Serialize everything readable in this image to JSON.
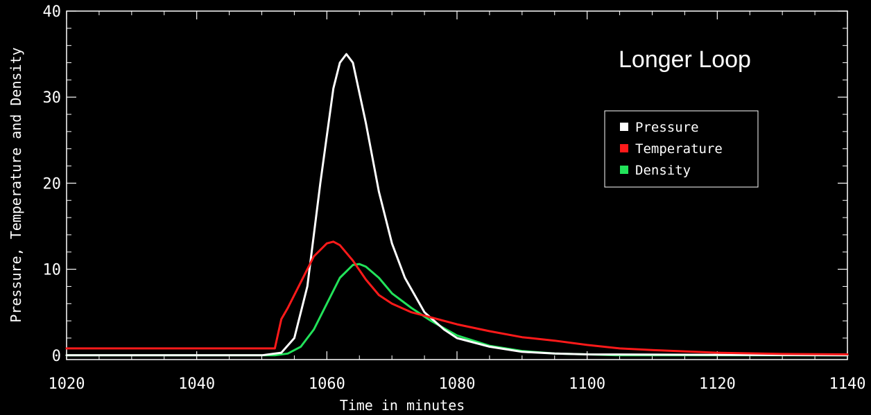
{
  "chart_data": {
    "type": "line",
    "xlabel": "Time in minutes",
    "ylabel": "Pressure, Temperature and Density",
    "xlim": [
      1020,
      1140
    ],
    "ylim": [
      -0.5,
      40
    ],
    "x_ticks": [
      "1020",
      "1040",
      "1060",
      "1080",
      "1100",
      "1120",
      "1140"
    ],
    "y_ticks": [
      "0",
      "10",
      "20",
      "30",
      "40"
    ],
    "annotation": "Longer Loop",
    "legend_position": "top-right",
    "grid": false,
    "background": "#000000",
    "series": [
      {
        "name": "Pressure",
        "color": "#ffffff",
        "x": [
          1020,
          1050,
          1053,
          1055,
          1057,
          1059,
          1061,
          1062,
          1063,
          1064,
          1066,
          1068,
          1070,
          1072,
          1075,
          1078,
          1080,
          1085,
          1090,
          1095,
          1100,
          1140
        ],
        "y": [
          0.0,
          0.0,
          0.3,
          2.0,
          8.0,
          20.0,
          31.0,
          34.0,
          35.0,
          34.0,
          27.0,
          19.0,
          13.0,
          9.0,
          5.0,
          3.0,
          2.0,
          1.0,
          0.4,
          0.2,
          0.1,
          0.0
        ]
      },
      {
        "name": "Temperature",
        "color": "#ff1a1a",
        "x": [
          1020,
          1052,
          1052.5,
          1053,
          1054,
          1056,
          1058,
          1060,
          1061,
          1062,
          1064,
          1066,
          1068,
          1070,
          1073,
          1076,
          1080,
          1085,
          1090,
          1095,
          1100,
          1105,
          1110,
          1120,
          1130,
          1140
        ],
        "y": [
          0.8,
          0.8,
          2.5,
          4.2,
          5.5,
          8.5,
          11.5,
          13.0,
          13.2,
          12.8,
          11.0,
          8.8,
          7.0,
          6.0,
          5.0,
          4.4,
          3.6,
          2.8,
          2.1,
          1.7,
          1.2,
          0.8,
          0.6,
          0.3,
          0.15,
          0.1
        ]
      },
      {
        "name": "Density",
        "color": "#22e35a",
        "x": [
          1020,
          1052,
          1054,
          1056,
          1058,
          1060,
          1062,
          1064,
          1065,
          1066,
          1068,
          1070,
          1073,
          1076,
          1080,
          1085,
          1090,
          1095,
          1100,
          1105,
          1140
        ],
        "y": [
          0.0,
          0.0,
          0.2,
          1.0,
          3.0,
          6.0,
          9.0,
          10.5,
          10.6,
          10.3,
          9.0,
          7.2,
          5.5,
          4.0,
          2.3,
          1.1,
          0.5,
          0.2,
          0.1,
          0.0,
          0.0
        ]
      }
    ]
  }
}
